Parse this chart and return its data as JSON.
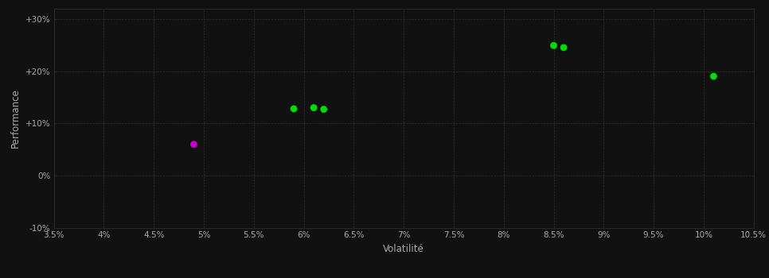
{
  "background_color": "#111111",
  "plot_bg_color": "#111111",
  "grid_color": "#333333",
  "text_color": "#aaaaaa",
  "xlabel": "Volatilité",
  "ylabel": "Performance",
  "xlim": [
    0.035,
    0.105
  ],
  "ylim": [
    -0.1,
    0.32
  ],
  "xticks": [
    0.035,
    0.04,
    0.045,
    0.05,
    0.055,
    0.06,
    0.065,
    0.07,
    0.075,
    0.08,
    0.085,
    0.09,
    0.095,
    0.1,
    0.105
  ],
  "yticks": [
    -0.1,
    0.0,
    0.1,
    0.2,
    0.3
  ],
  "ytick_labels": [
    "-10%",
    "0%",
    "+10%",
    "+20%",
    "+30%"
  ],
  "xtick_labels": [
    "3.5%",
    "4%",
    "4.5%",
    "5%",
    "5.5%",
    "6%",
    "6.5%",
    "7%",
    "7.5%",
    "8%",
    "8.5%",
    "9%",
    "9.5%",
    "10%",
    "10.5%"
  ],
  "green_points": [
    [
      0.059,
      0.128
    ],
    [
      0.061,
      0.13
    ],
    [
      0.062,
      0.127
    ],
    [
      0.085,
      0.249
    ],
    [
      0.086,
      0.245
    ],
    [
      0.101,
      0.19
    ]
  ],
  "magenta_points": [
    [
      0.049,
      0.06
    ]
  ],
  "green_color": "#00dd00",
  "magenta_color": "#cc00cc",
  "marker_size": 40,
  "figsize": [
    9.66,
    3.5
  ],
  "dpi": 100
}
